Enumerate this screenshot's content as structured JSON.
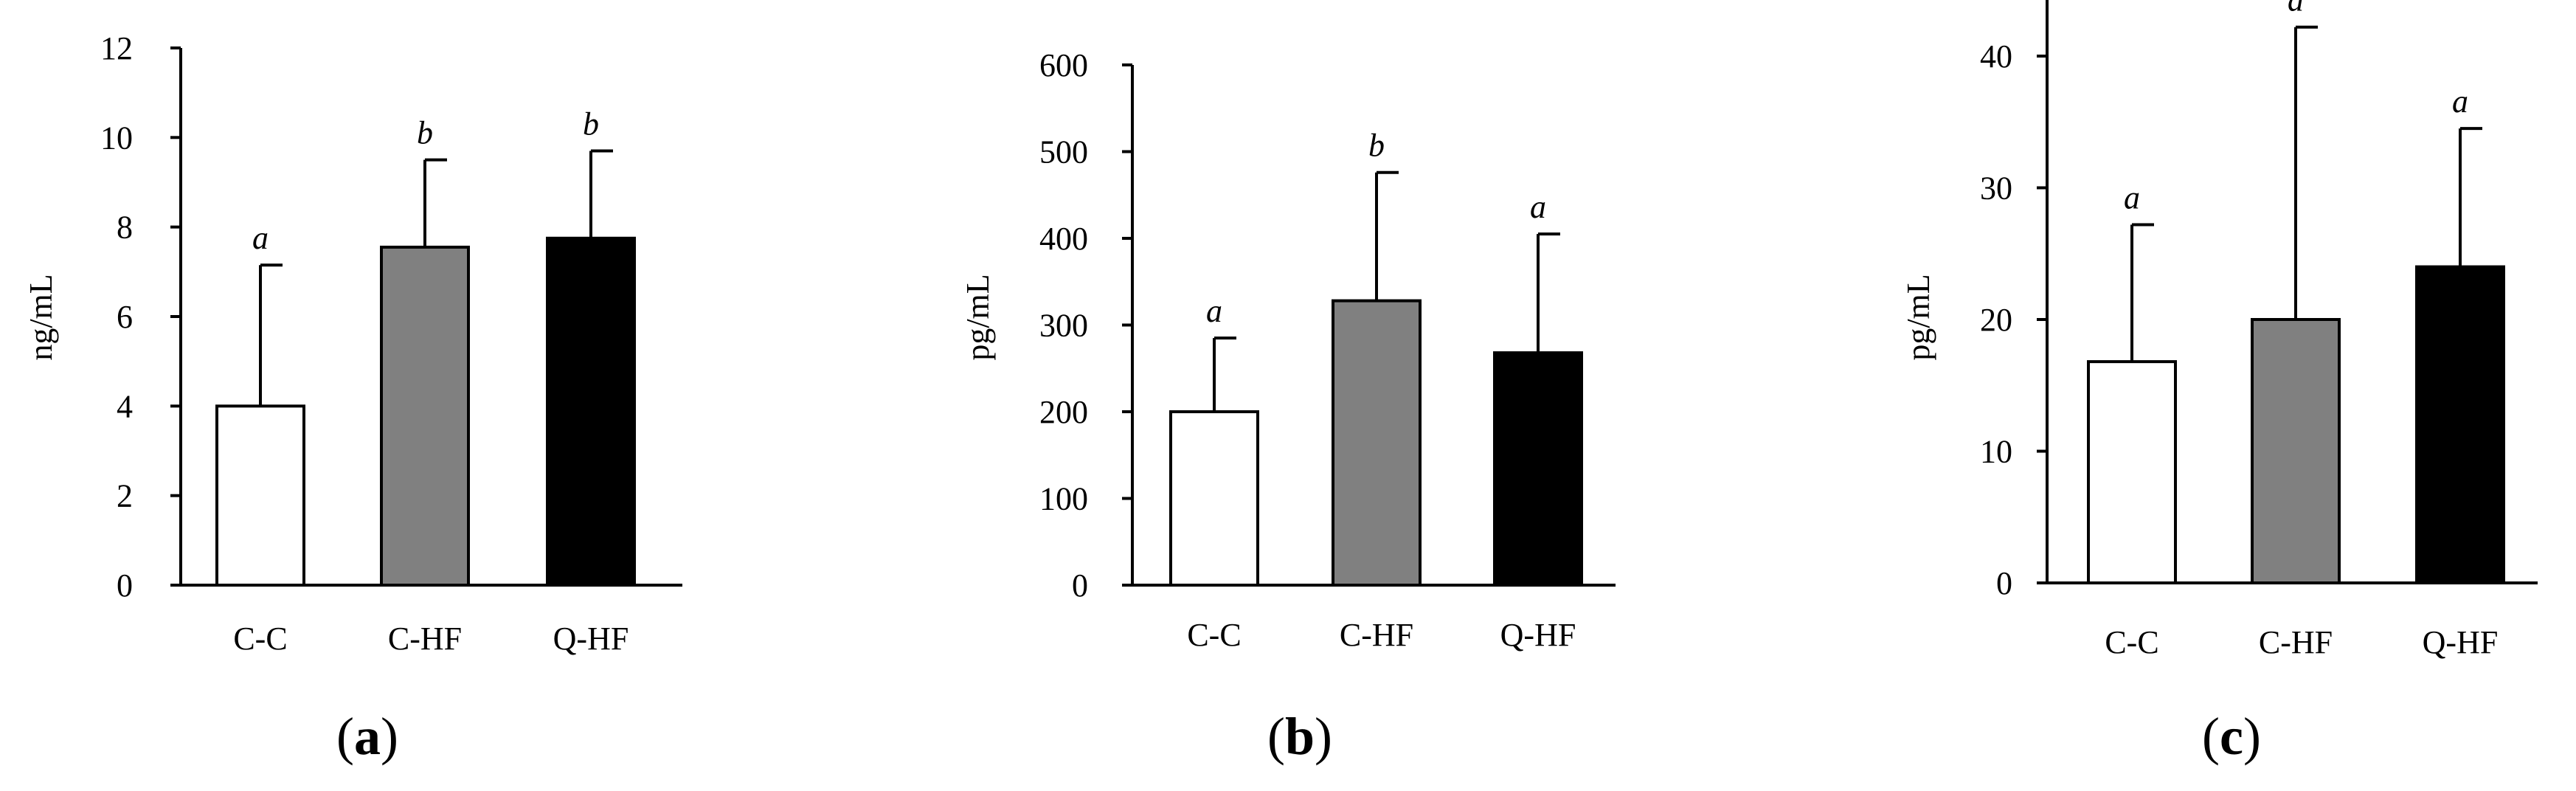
{
  "chart_data": [
    {
      "type": "bar",
      "panel_label": "a",
      "ylabel": "ng/mL",
      "ylim": [
        0,
        12
      ],
      "yticks": [
        0,
        2,
        4,
        6,
        8,
        10,
        12
      ],
      "categories": [
        "C-C",
        "C-HF",
        "Q-HF"
      ],
      "series": [
        {
          "name": "",
          "values": [
            4.0,
            7.55,
            7.75
          ],
          "errors": [
            3.15,
            1.95,
            1.95
          ],
          "significance": [
            "a",
            "b",
            "b"
          ],
          "colors": [
            "#ffffff",
            "#808080",
            "#000000"
          ]
        }
      ],
      "grid": false
    },
    {
      "type": "bar",
      "panel_label": "b",
      "ylabel": "pg/mL",
      "ylim": [
        0,
        600
      ],
      "yticks": [
        0,
        100,
        200,
        300,
        400,
        500,
        600
      ],
      "categories": [
        "C-C",
        "C-HF",
        "Q-HF"
      ],
      "series": [
        {
          "name": "",
          "values": [
            200,
            328,
            268
          ],
          "errors": [
            85,
            148,
            137
          ],
          "significance": [
            "a",
            "b",
            "a"
          ],
          "colors": [
            "#ffffff",
            "#808080",
            "#000000"
          ]
        }
      ],
      "grid": false
    },
    {
      "type": "bar",
      "panel_label": "c",
      "ylabel": "pg/mL",
      "ylim": [
        0,
        45
      ],
      "yticks": [
        0,
        10,
        20,
        30,
        40
      ],
      "categories": [
        "C-C",
        "C-HF",
        "Q-HF"
      ],
      "series": [
        {
          "name": "",
          "values": [
            16.8,
            20.0,
            24.0
          ],
          "errors": [
            10.4,
            22.2,
            10.5
          ],
          "significance": [
            "a",
            "a",
            "a"
          ],
          "colors": [
            "#ffffff",
            "#808080",
            "#000000"
          ]
        }
      ],
      "grid": false
    }
  ]
}
